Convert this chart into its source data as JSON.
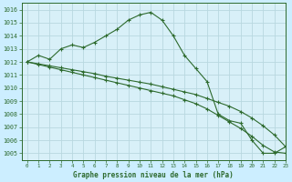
{
  "xlabel": "Graphe pression niveau de la mer (hPa)",
  "xlim": [
    -0.5,
    23
  ],
  "ylim": [
    1004.5,
    1016.5
  ],
  "yticks": [
    1005,
    1006,
    1007,
    1008,
    1009,
    1010,
    1011,
    1012,
    1013,
    1014,
    1015,
    1016
  ],
  "xticks": [
    0,
    1,
    2,
    3,
    4,
    5,
    6,
    7,
    8,
    9,
    10,
    11,
    12,
    13,
    14,
    15,
    16,
    17,
    18,
    19,
    20,
    21,
    22,
    23
  ],
  "bg_color": "#cceeff",
  "plot_bg": "#d8f0f8",
  "line_color": "#2d6a2d",
  "grid_color": "#b8d8e0",
  "series": [
    [
      1012.0,
      1012.5,
      1012.2,
      1013.0,
      1013.3,
      1013.1,
      1013.5,
      1014.0,
      1014.5,
      1015.2,
      1015.6,
      1015.8,
      1015.2,
      1014.0,
      1012.5,
      1011.5,
      1010.5,
      1008.0,
      1007.5,
      1007.3,
      1006.0,
      1005.0,
      1005.0,
      1005.5
    ],
    [
      1012.0,
      1011.85,
      1011.7,
      1011.55,
      1011.4,
      1011.25,
      1011.1,
      1010.9,
      1010.75,
      1010.6,
      1010.45,
      1010.3,
      1010.1,
      1009.9,
      1009.7,
      1009.5,
      1009.2,
      1008.9,
      1008.6,
      1008.2,
      1007.7,
      1007.1,
      1006.4,
      1005.5
    ],
    [
      1012.0,
      1011.8,
      1011.6,
      1011.4,
      1011.2,
      1011.0,
      1010.8,
      1010.6,
      1010.4,
      1010.2,
      1010.0,
      1009.8,
      1009.6,
      1009.4,
      1009.1,
      1008.8,
      1008.4,
      1007.9,
      1007.4,
      1006.9,
      1006.3,
      1005.6,
      1005.1,
      1005.0
    ]
  ],
  "figsize": [
    3.2,
    2.0
  ],
  "dpi": 100
}
